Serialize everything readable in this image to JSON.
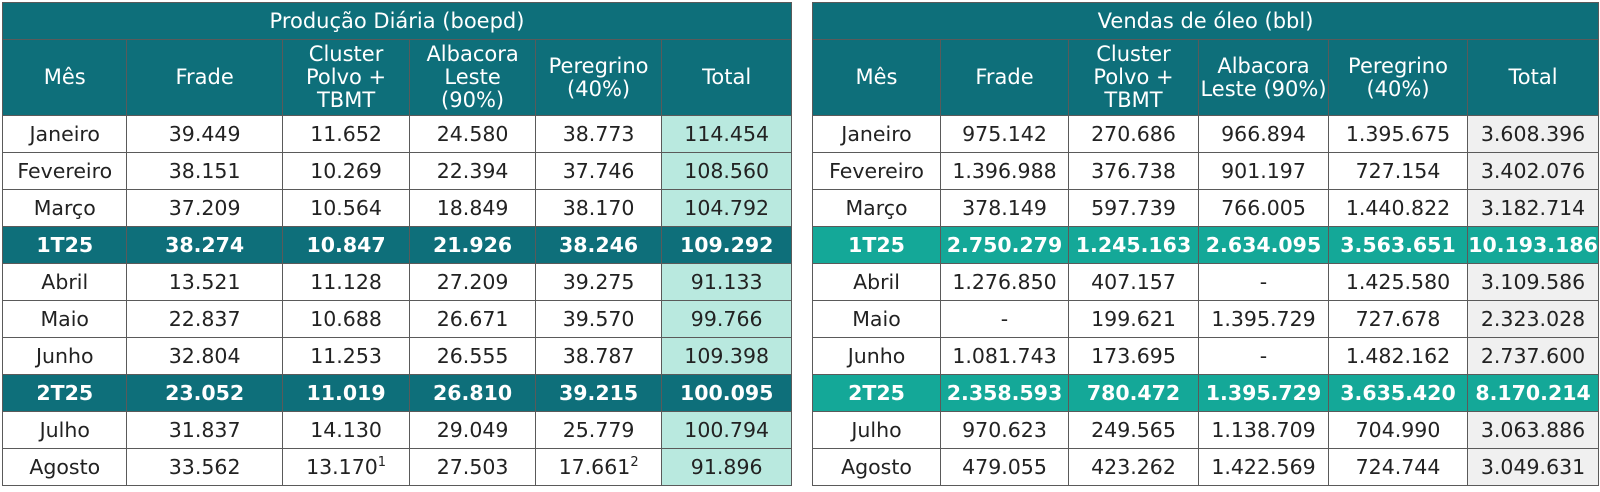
{
  "production": {
    "title": "Produção Diária (boepd)",
    "headers": [
      "Mês",
      "Frade",
      "Cluster Polvo + TBMT",
      "Albacora Leste (90%)",
      "Peregrino (40%)",
      "Total"
    ],
    "rows": [
      {
        "type": "month",
        "cells": [
          "Janeiro",
          "39.449",
          "11.652",
          "24.580",
          "38.773",
          "114.454"
        ]
      },
      {
        "type": "month",
        "cells": [
          "Fevereiro",
          "38.151",
          "10.269",
          "22.394",
          "37.746",
          "108.560"
        ]
      },
      {
        "type": "month",
        "cells": [
          "Março",
          "37.209",
          "10.564",
          "18.849",
          "38.170",
          "104.792"
        ]
      },
      {
        "type": "quarter",
        "cells": [
          "1T25",
          "38.274",
          "10.847",
          "21.926",
          "38.246",
          "109.292"
        ]
      },
      {
        "type": "month",
        "cells": [
          "Abril",
          "13.521",
          "11.128",
          "27.209",
          "39.275",
          "91.133"
        ]
      },
      {
        "type": "month",
        "cells": [
          "Maio",
          "22.837",
          "10.688",
          "26.671",
          "39.570",
          "99.766"
        ]
      },
      {
        "type": "month",
        "cells": [
          "Junho",
          "32.804",
          "11.253",
          "26.555",
          "38.787",
          "109.398"
        ]
      },
      {
        "type": "quarter",
        "cells": [
          "2T25",
          "23.052",
          "11.019",
          "26.810",
          "39.215",
          "100.095"
        ]
      },
      {
        "type": "month",
        "cells": [
          "Julho",
          "31.837",
          "14.130",
          "29.049",
          "25.779",
          "100.794"
        ]
      },
      {
        "type": "month",
        "cells": [
          "Agosto",
          "33.562",
          "13.170",
          "27.503",
          "17.661",
          "91.896"
        ]
      }
    ],
    "footnotes": {
      "agosto_cluster": "1",
      "agosto_peregrino": "2"
    }
  },
  "sales": {
    "title": "Vendas de óleo (bbl)",
    "headers": [
      "Mês",
      "Frade",
      "Cluster Polvo + TBMT",
      "Albacora Leste (90%)",
      "Peregrino (40%)",
      "Total"
    ],
    "rows": [
      {
        "type": "month",
        "cells": [
          "Janeiro",
          "975.142",
          "270.686",
          "966.894",
          "1.395.675",
          "3.608.396"
        ]
      },
      {
        "type": "month",
        "cells": [
          "Fevereiro",
          "1.396.988",
          "376.738",
          "901.197",
          "727.154",
          "3.402.076"
        ]
      },
      {
        "type": "month",
        "cells": [
          "Março",
          "378.149",
          "597.739",
          "766.005",
          "1.440.822",
          "3.182.714"
        ]
      },
      {
        "type": "quarter",
        "cells": [
          "1T25",
          "2.750.279",
          "1.245.163",
          "2.634.095",
          "3.563.651",
          "10.193.186"
        ]
      },
      {
        "type": "month",
        "cells": [
          "Abril",
          "1.276.850",
          "407.157",
          "-",
          "1.425.580",
          "3.109.586"
        ]
      },
      {
        "type": "month",
        "cells": [
          "Maio",
          "-",
          "199.621",
          "1.395.729",
          "727.678",
          "2.323.028"
        ]
      },
      {
        "type": "month",
        "cells": [
          "Junho",
          "1.081.743",
          "173.695",
          "-",
          "1.482.162",
          "2.737.600"
        ]
      },
      {
        "type": "quarter",
        "cells": [
          "2T25",
          "2.358.593",
          "780.472",
          "1.395.729",
          "3.635.420",
          "8.170.214"
        ]
      },
      {
        "type": "month",
        "cells": [
          "Julho",
          "970.623",
          "249.565",
          "1.138.709",
          "704.990",
          "3.063.886"
        ]
      },
      {
        "type": "month",
        "cells": [
          "Agosto",
          "479.055",
          "423.262",
          "1.422.569",
          "724.744",
          "3.049.631"
        ]
      }
    ]
  },
  "colors": {
    "header_teal": "#0e6f7a",
    "production_total_bg": "#b9e9df",
    "sales_quarter_bg": "#14a898",
    "sales_total_bg": "#f0f0f0"
  }
}
